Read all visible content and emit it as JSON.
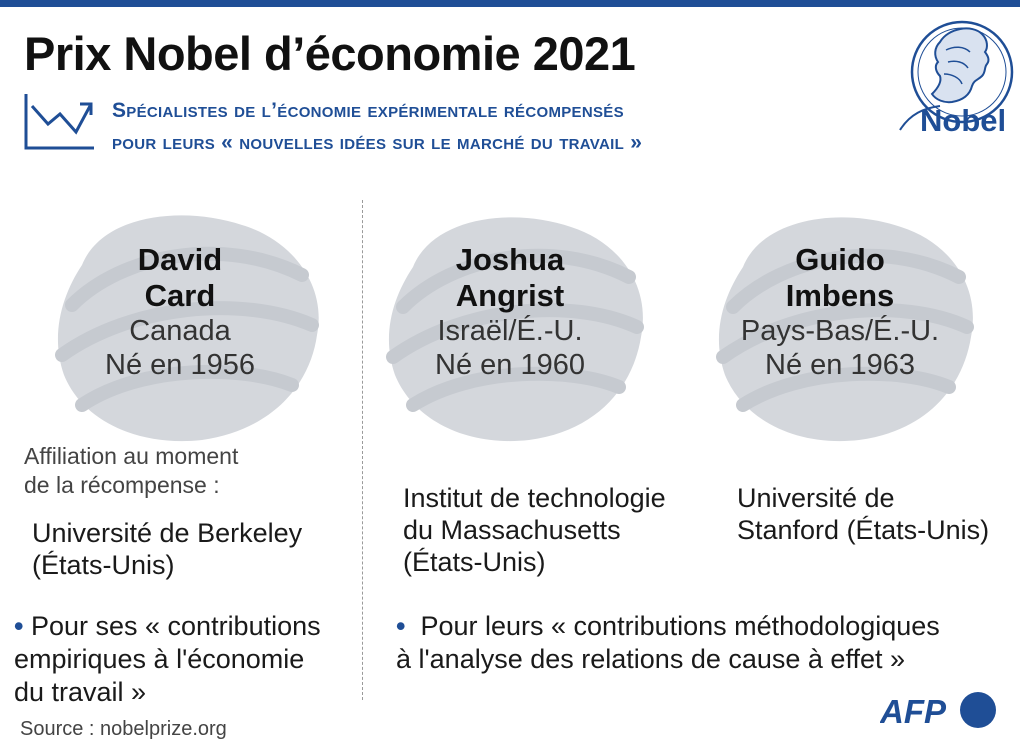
{
  "header": {
    "title": "Prix Nobel d’économie 2021",
    "subtitle_line1": "Spécialistes de l’économie expérimentale récompensés",
    "subtitle_line2": "pour leurs « nouvelles idées sur le marché du travail »"
  },
  "logo": {
    "text": "Nobel"
  },
  "affiliation_label": {
    "line1": "Affiliation au moment",
    "line2": "de la récompense :"
  },
  "laureates": [
    {
      "name_line1": "David",
      "name_line2": "Card",
      "country": "Canada",
      "born": "Né en 1956",
      "affiliation_line1": "Université de Berkeley",
      "affiliation_line2": "(États-Unis)",
      "affiliation_line3": ""
    },
    {
      "name_line1": "Joshua",
      "name_line2": "Angrist",
      "country": "Israël/É.-U.",
      "born": "Né en 1960",
      "affiliation_line1": "Institut de technologie",
      "affiliation_line2": "du Massachusetts",
      "affiliation_line3": "(États-Unis)"
    },
    {
      "name_line1": "Guido",
      "name_line2": "Imbens",
      "country": "Pays-Bas/É.-U.",
      "born": "Né en 1963",
      "affiliation_line1": "Université de",
      "affiliation_line2": "Stanford (États-Unis)",
      "affiliation_line3": ""
    }
  ],
  "citations": {
    "left": {
      "line1": "Pour ses « contributions",
      "line2": "empiriques à l'économie",
      "line3": "du travail »"
    },
    "right": {
      "line1": "Pour leurs « contributions méthodologiques",
      "line2": "à l'analyse des relations de cause à effet »"
    }
  },
  "footer": {
    "source": "Source : nobelprize.org",
    "agency": "AFP"
  },
  "colors": {
    "accent": "#1f4e96",
    "blob": "#d4d7dc",
    "text": "#1a1a1a"
  }
}
